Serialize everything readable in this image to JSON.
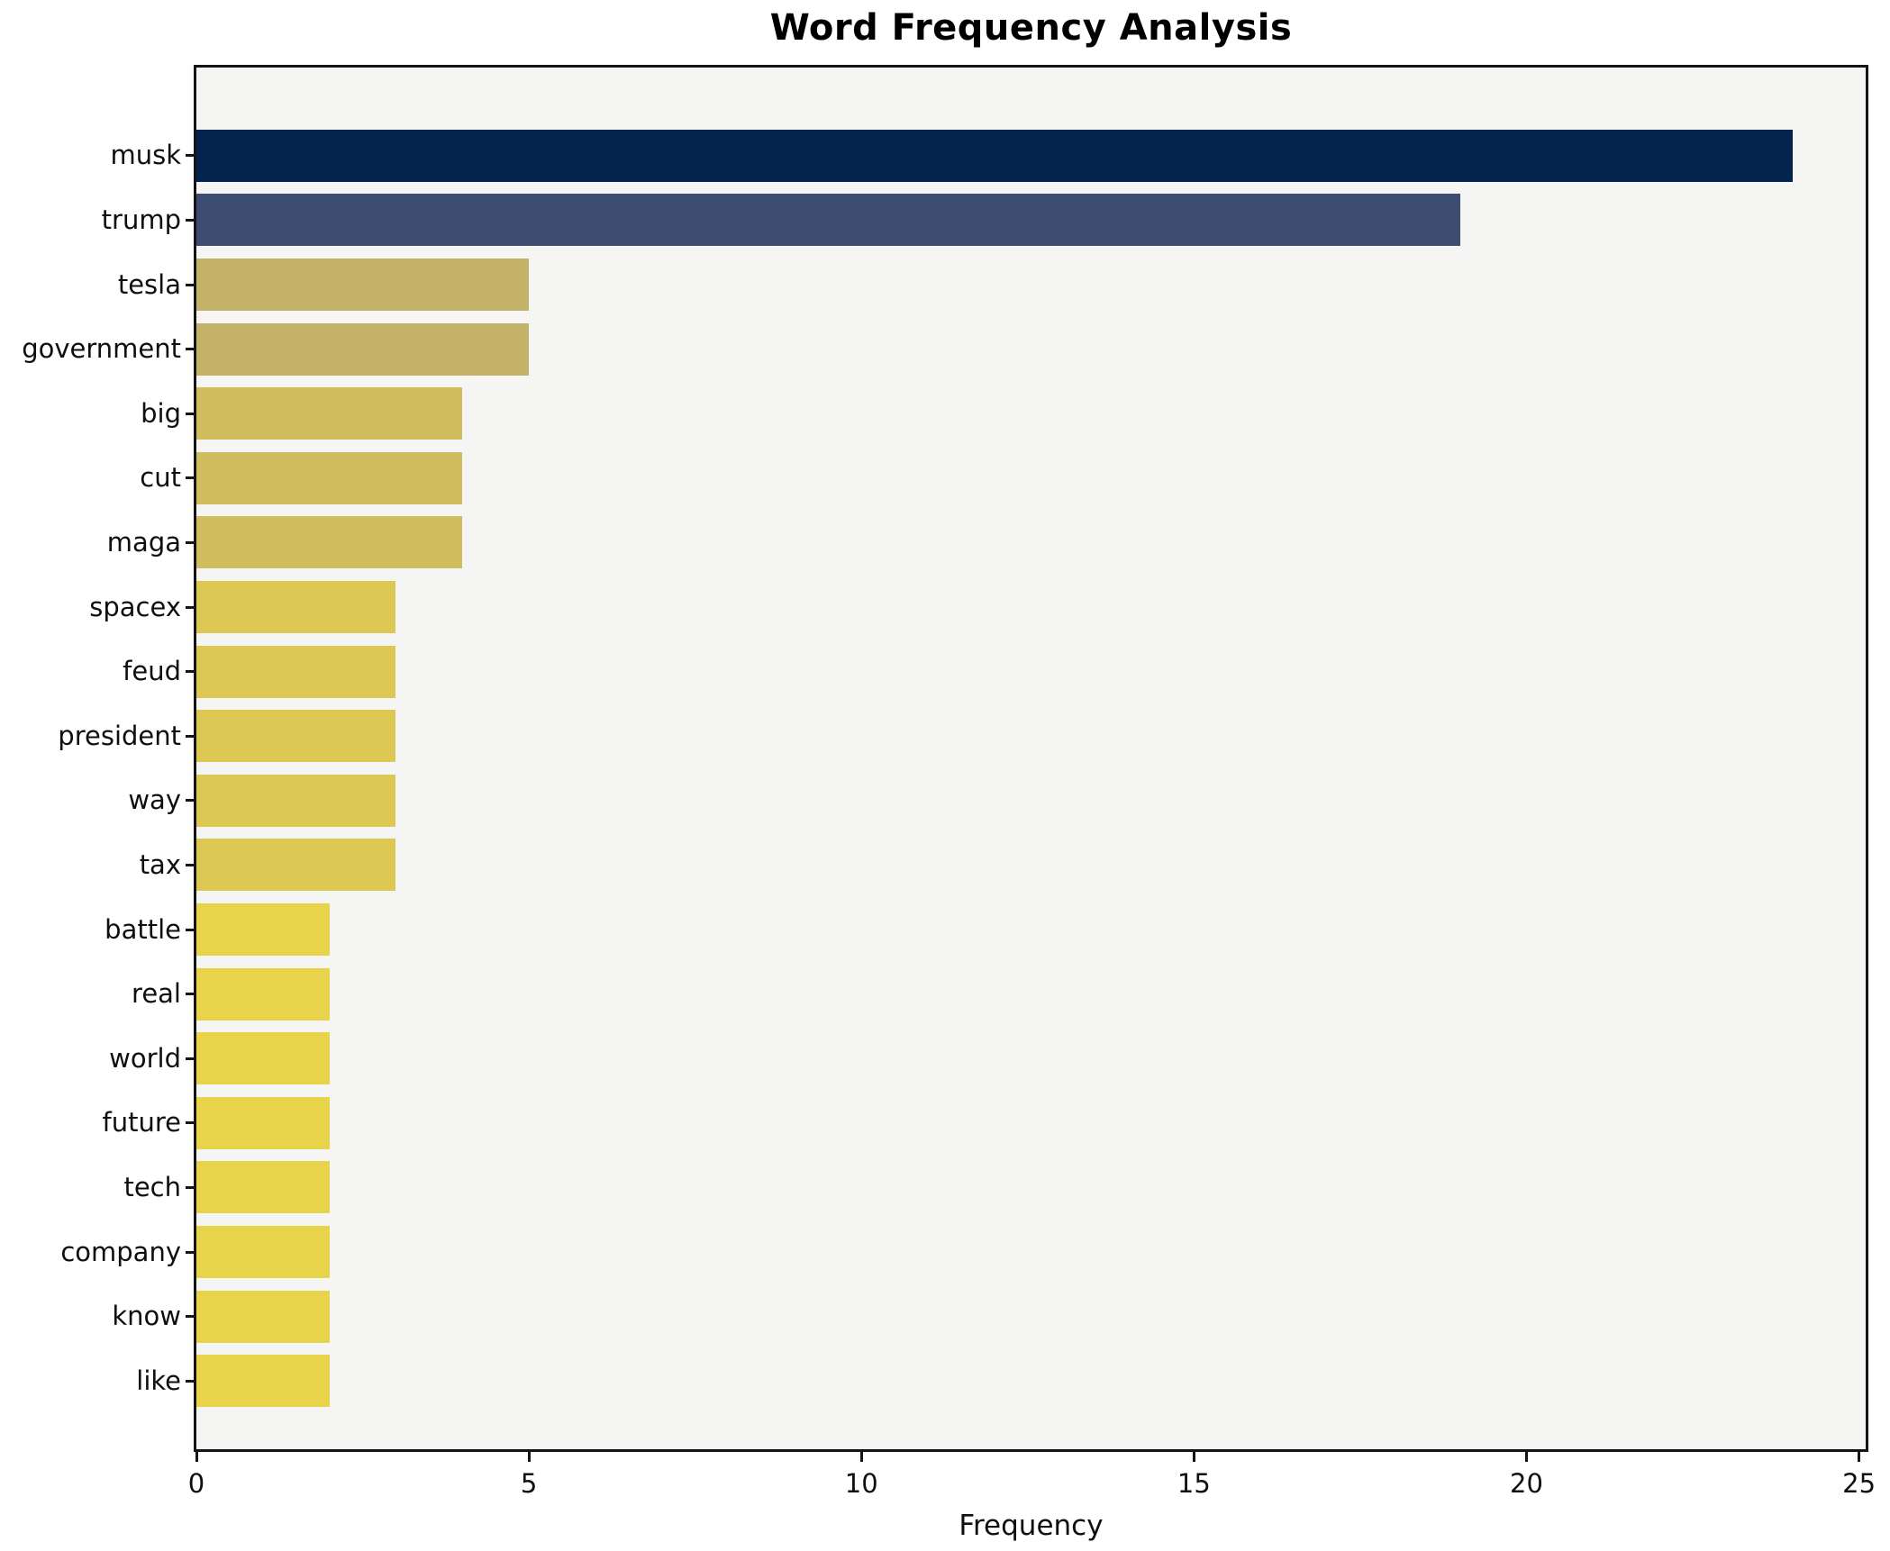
{
  "chart_data": {
    "type": "bar",
    "orientation": "horizontal",
    "title": "Word Frequency Analysis",
    "xlabel": "Frequency",
    "ylabel": "",
    "categories": [
      "musk",
      "trump",
      "tesla",
      "government",
      "big",
      "cut",
      "maga",
      "spacex",
      "feud",
      "president",
      "way",
      "tax",
      "battle",
      "real",
      "world",
      "future",
      "tech",
      "company",
      "know",
      "like"
    ],
    "values": [
      24,
      19,
      5,
      5,
      4,
      4,
      4,
      3,
      3,
      3,
      3,
      3,
      2,
      2,
      2,
      2,
      2,
      2,
      2,
      2
    ],
    "bar_colors": [
      "#02234e",
      "#3c4d71",
      "#c3b267",
      "#c3b267",
      "#d0bd5e",
      "#d0bd5e",
      "#d0bd5e",
      "#dcc853",
      "#dcc853",
      "#dcc853",
      "#dcc853",
      "#dcc853",
      "#e7d44b",
      "#e7d44b",
      "#e7d44b",
      "#e7d44b",
      "#e7d44b",
      "#e7d44b",
      "#e7d44b",
      "#e7d44b"
    ],
    "xticks": [
      0,
      5,
      10,
      15,
      20,
      25
    ],
    "xlim": [
      0,
      25.1
    ],
    "grid": false,
    "legend": null,
    "plot_background": "#f5f5f4",
    "figure_background": "#ffffff",
    "spine_color": "#141414"
  }
}
